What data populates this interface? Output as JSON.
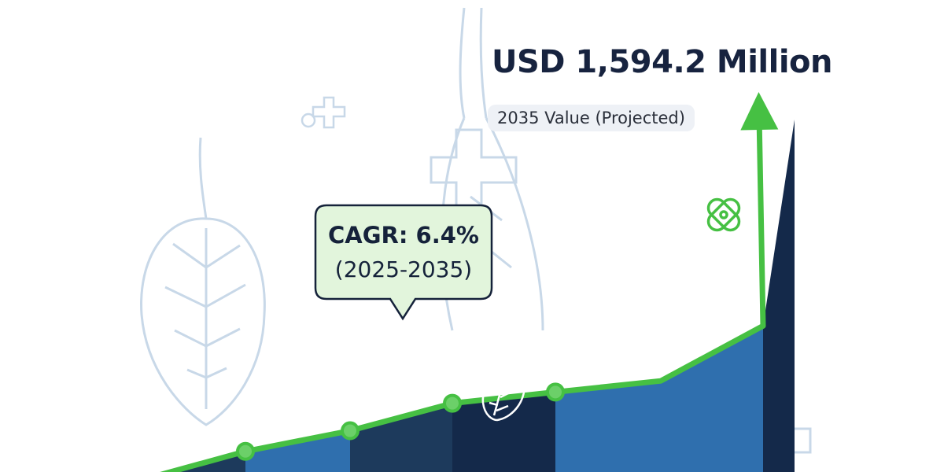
{
  "headline": "USD 1,594.2 Million",
  "subtitle": "2035 Value (Projected)",
  "callout": {
    "line1": "CAGR: 6.4%",
    "line2": "(2025-2035)"
  },
  "colors": {
    "bar_light": "#2f6fae",
    "bar_dark": "#1d3a5c",
    "bar_darkest": "#14294a",
    "trend_line": "#46c043",
    "marker": "#6cd069",
    "callout_fill": "#e2f5dc",
    "text_dark": "#17233f",
    "decor_outline": "#c8d8e8"
  },
  "icons": [
    "lung-outline-icon",
    "medical-cross-icon",
    "bandage-icon",
    "leaf-lung-icon"
  ],
  "chart_data": {
    "type": "bar",
    "annotation": "USD 1,594.2 Million",
    "categories": [
      "",
      "",
      "",
      "",
      "",
      "",
      ""
    ],
    "values": [
      48,
      96,
      160,
      186,
      212,
      340,
      820
    ],
    "trend_markers": [
      1,
      2,
      3,
      4
    ],
    "ylim": [
      0,
      820
    ],
    "grid": false,
    "legend": "none"
  }
}
